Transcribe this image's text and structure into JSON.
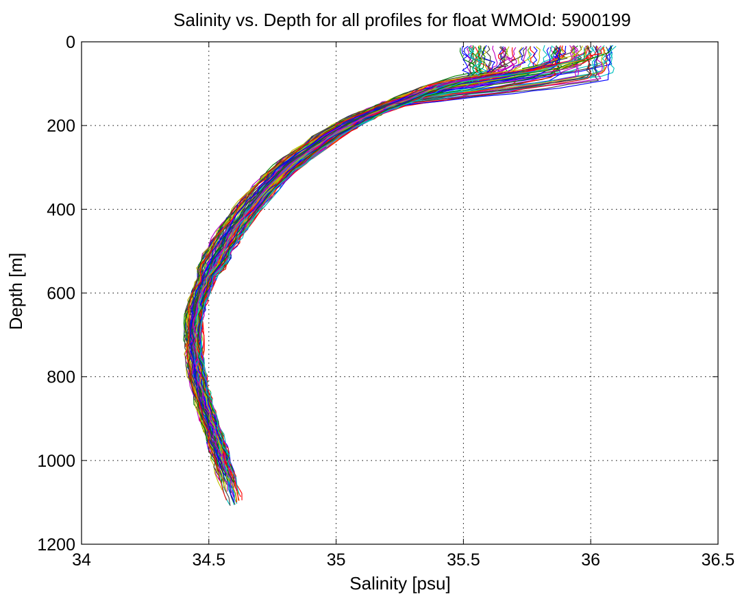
{
  "chart_data": {
    "type": "line",
    "title": "Salinity vs. Depth for all profiles for float WMOId: 5900199",
    "xlabel": "Salinity [psu]",
    "ylabel": "Depth [m]",
    "xlim": [
      34,
      36.5
    ],
    "ylim": [
      0,
      1200
    ],
    "y_reversed": true,
    "grid": true,
    "legend": "none",
    "xticks": [
      34,
      34.5,
      35,
      35.5,
      36,
      36.5
    ],
    "xtick_labels": [
      "34",
      "34.5",
      "35",
      "35.5",
      "36",
      "36.5"
    ],
    "yticks": [
      0,
      200,
      400,
      600,
      800,
      1000,
      1200
    ],
    "ytick_labels": [
      "0",
      "200",
      "400",
      "600",
      "800",
      "1000",
      "1200"
    ],
    "series_colors": [
      "#0000ff",
      "#008000",
      "#ff0000",
      "#00bfbf",
      "#bf00bf",
      "#bfbf00",
      "#404040"
    ],
    "profile_count": 96,
    "mean_profile": {
      "depth": [
        10,
        40,
        70,
        100,
        140,
        180,
        220,
        260,
        300,
        350,
        400,
        450,
        500,
        550,
        600,
        650,
        700,
        750,
        800,
        850,
        900,
        950,
        1000,
        1050
      ],
      "salinity": [
        35.72,
        35.7,
        35.62,
        35.42,
        35.26,
        35.1,
        34.98,
        34.89,
        34.8,
        34.72,
        34.65,
        34.59,
        34.54,
        34.5,
        34.465,
        34.445,
        34.44,
        34.445,
        34.455,
        34.475,
        34.5,
        34.525,
        34.55,
        34.575
      ]
    },
    "annotations": ""
  }
}
